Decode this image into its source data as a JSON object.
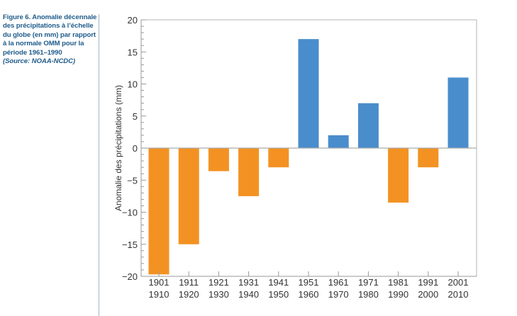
{
  "caption": {
    "text": "Figure 6. Anomalie décennale des précipitations à l’échelle du globe (en mm) par rapport à la normale OMM pour la période 1961–1990",
    "source": "(Source: NOAA-NCDC)"
  },
  "chart_data": {
    "type": "bar",
    "title": "",
    "xlabel": "",
    "ylabel": "Anomalie des précipitations (mm)",
    "ylim": [
      -20,
      20
    ],
    "yticks": [
      20,
      15,
      10,
      5,
      0,
      -5,
      -10,
      -15,
      -20
    ],
    "ytick_labels": [
      "20",
      "15",
      "10",
      "5",
      "0",
      "−5",
      "−10",
      "−15",
      "−20"
    ],
    "categories": [
      [
        "1901",
        "1910"
      ],
      [
        "1911",
        "1920"
      ],
      [
        "1921",
        "1930"
      ],
      [
        "1931",
        "1940"
      ],
      [
        "1941",
        "1950"
      ],
      [
        "1951",
        "1960"
      ],
      [
        "1961",
        "1970"
      ],
      [
        "1971",
        "1980"
      ],
      [
        "1981",
        "1990"
      ],
      [
        "1991",
        "2000"
      ],
      [
        "2001",
        "2010"
      ]
    ],
    "values": [
      -19.7,
      -15,
      -3.6,
      -7.5,
      -3,
      17,
      2,
      7,
      -8.5,
      -3,
      11
    ],
    "grid": false,
    "colors": {
      "positive": "#4a8dcc",
      "negative": "#f39222"
    }
  }
}
